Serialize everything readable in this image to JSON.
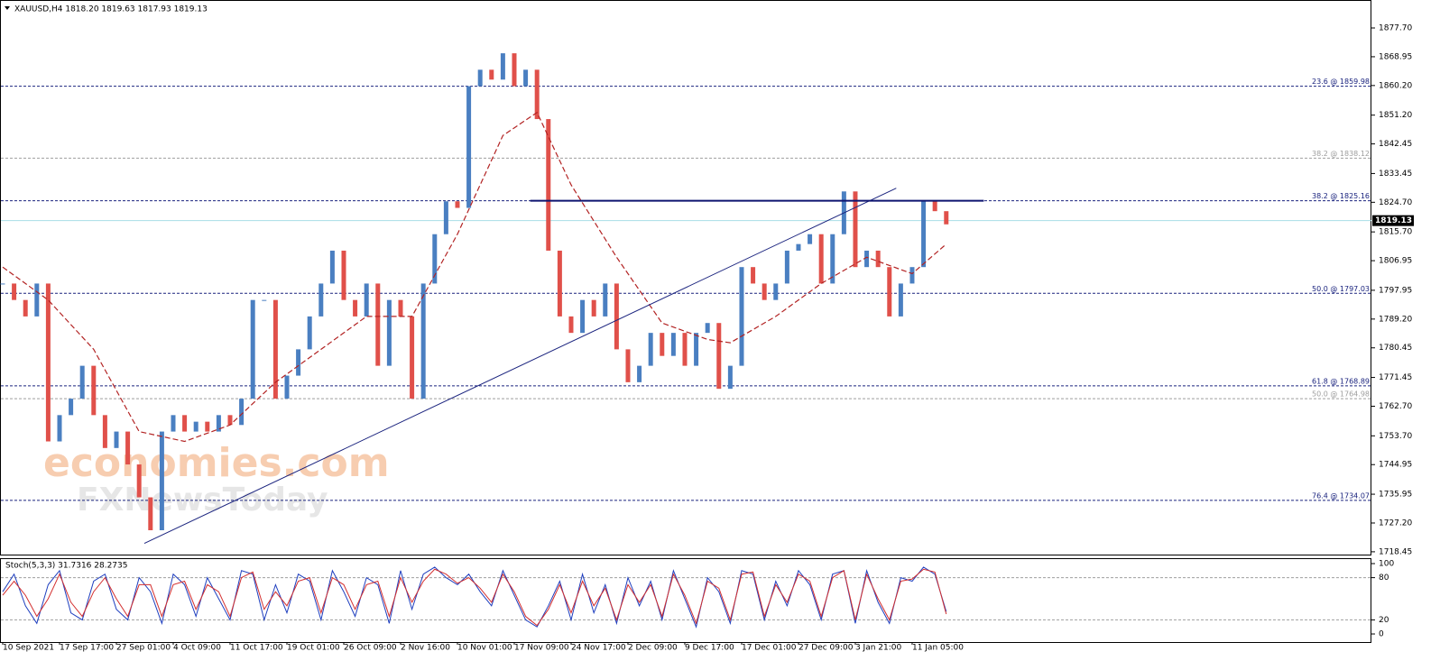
{
  "chart_data": [
    {
      "type": "candlestick",
      "title": "XAUUSD,H4  1818.20 1819.63 1817.93 1819.13",
      "watermark": [
        "economies.com",
        "FXNewsToday"
      ],
      "xlim": [
        0,
        120.4
      ],
      "ylim": [
        1717.6,
        1886.2
      ],
      "yticks": [
        {
          "value": 1877.7,
          "label": "1877.70"
        },
        1868.95,
        {
          "value": 1860.2,
          "label": "1860.20"
        },
        {
          "value": 1851.2,
          "label": "1851.20"
        },
        1842.45,
        1833.45,
        {
          "value": 1824.7,
          "label": "1824.70"
        },
        {
          "value": 1815.7,
          "label": "1815.70"
        },
        1806.95,
        1797.95,
        {
          "value": 1789.2,
          "label": "1789.20"
        },
        1780.45,
        1771.45,
        {
          "value": 1762.7,
          "label": "1762.70"
        },
        {
          "value": 1753.7,
          "label": "1753.70"
        },
        1744.95,
        1735.95,
        {
          "value": 1727.2,
          "label": "1727.20"
        },
        1718.45
      ],
      "values": [
        1800,
        1795,
        1790,
        1800,
        1752,
        1760,
        1765,
        1775,
        1760,
        1750,
        1755,
        1745,
        1735,
        1725,
        1755,
        1760,
        1755,
        1758,
        1755,
        1760,
        1757,
        1765,
        1795,
        1795,
        1765,
        1772,
        1780,
        1790,
        1800,
        1810,
        1795,
        1790,
        1800,
        1775,
        1795,
        1790,
        1765,
        1800,
        1815,
        1825,
        1823,
        1860,
        1865,
        1862,
        1870,
        1860,
        1865,
        1850,
        1810,
        1790,
        1785,
        1795,
        1790,
        1800,
        1780,
        1770,
        1775,
        1785,
        1778,
        1785,
        1775,
        1785,
        1788,
        1768,
        1775,
        1805,
        1800,
        1795,
        1800,
        1810,
        1812,
        1815,
        1800,
        1815,
        1828,
        1805,
        1810,
        1805,
        1790,
        1800,
        1805,
        1825,
        1822,
        1818
      ],
      "color_up": "#4a7fc1",
      "color_down": "#e0504a",
      "moving_average": {
        "color": "#b22222",
        "x": [
          0,
          4,
          8,
          12,
          16,
          20,
          24,
          28,
          32,
          36,
          40,
          44,
          47,
          50,
          54,
          58,
          62,
          64,
          68,
          72,
          76,
          80,
          83
        ],
        "values": [
          1805,
          1795,
          1780,
          1755,
          1752,
          1757,
          1770,
          1780,
          1790,
          1790,
          1815,
          1845,
          1852,
          1830,
          1808,
          1788,
          1783,
          1782,
          1790,
          1800,
          1808,
          1803,
          1812
        ]
      },
      "trendline": {
        "color": "#1a237e",
        "x": [
          12.46,
          78.6
        ],
        "values": [
          1721,
          1829
        ]
      },
      "level_line": {
        "color": "#0d1470",
        "x": [
          46.4,
          86.3
        ],
        "values": [
          1825.16,
          1825.16
        ]
      },
      "levels": [
        {
          "label": "23.6 @ 1859.98",
          "value": 1859.98,
          "color": "#1a237e"
        },
        {
          "label": "38.2 @ 1838.12",
          "value": 1838.12,
          "color": "#9e9e9e"
        },
        {
          "label": "38.2 @ 1825.16",
          "value": 1825.16,
          "color": "#1a237e"
        },
        {
          "label": "50.0 @ 1797.03",
          "value": 1797.03,
          "color": "#1a237e"
        },
        {
          "label": "61.8 @ 1768.89",
          "value": 1768.89,
          "color": "#1a237e"
        },
        {
          "label": "50.0 @ 1764.98",
          "value": 1764.98,
          "color": "#9e9e9e"
        },
        {
          "label": "76.4 @ 1734.07",
          "value": 1734.07,
          "color": "#1a237e"
        }
      ],
      "current_price": 1819.13,
      "current_price_color": "#a8dde6"
    },
    {
      "type": "line",
      "title": "Stoch(5,3,3) 31.7316 28.2735",
      "xlim": [
        0,
        120.4
      ],
      "ylim": [
        -11.5,
        106.4
      ],
      "yticks": [
        100,
        80,
        20,
        0
      ],
      "level_lines": [
        80,
        20
      ],
      "xticks": [
        {
          "value": 0,
          "label": "10 Sep 2021"
        },
        {
          "value": 5,
          "label": "17 Sep 17:00"
        },
        {
          "value": 10,
          "label": "27 Sep 01:00"
        },
        {
          "value": 15,
          "label": "4 Oct 09:00"
        },
        {
          "value": 20,
          "label": "11 Oct 17:00"
        },
        {
          "value": 25,
          "label": "19 Oct 01:00"
        },
        {
          "value": 30,
          "label": "26 Oct 09:00"
        },
        {
          "value": 35,
          "label": "2 Nov 16:00"
        },
        {
          "value": 40,
          "label": "10 Nov 01:00"
        },
        {
          "value": 45,
          "label": "17 Nov 09:00"
        },
        {
          "value": 50,
          "label": "24 Nov 17:00"
        },
        {
          "value": 55,
          "label": "2 Dec 09:00"
        },
        {
          "value": 60,
          "label": "9 Dec 17:00"
        },
        {
          "value": 65,
          "label": "17 Dec 01:00"
        },
        {
          "value": 70,
          "label": "27 Dec 09:00"
        },
        {
          "value": 75,
          "label": "3 Jan 21:00"
        },
        {
          "value": 80,
          "label": "11 Jan 05:00"
        }
      ],
      "series": [
        {
          "color": "#1f3fbf",
          "values": [
            60,
            85,
            40,
            15,
            70,
            90,
            30,
            20,
            75,
            85,
            35,
            20,
            80,
            60,
            15,
            85,
            70,
            25,
            80,
            50,
            20,
            90,
            85,
            20,
            70,
            30,
            85,
            75,
            20,
            90,
            60,
            25,
            80,
            70,
            15,
            90,
            35,
            85,
            95,
            80,
            70,
            85,
            60,
            40,
            90,
            55,
            20,
            10,
            40,
            75,
            20,
            85,
            30,
            70,
            15,
            80,
            40,
            75,
            20,
            90,
            50,
            10,
            80,
            60,
            15,
            90,
            85,
            20,
            75,
            40,
            90,
            70,
            20,
            85,
            90,
            15,
            90,
            45,
            15,
            80,
            75,
            95,
            85,
            31.7316
          ]
        },
        {
          "color": "#d32f2f",
          "values": [
            55,
            75,
            55,
            25,
            50,
            85,
            45,
            25,
            60,
            80,
            50,
            25,
            70,
            70,
            25,
            70,
            75,
            35,
            70,
            60,
            25,
            80,
            88,
            35,
            60,
            40,
            75,
            80,
            30,
            80,
            70,
            35,
            70,
            75,
            25,
            80,
            45,
            75,
            92,
            85,
            72,
            80,
            65,
            45,
            85,
            60,
            25,
            12,
            35,
            70,
            30,
            75,
            40,
            65,
            20,
            70,
            45,
            70,
            25,
            85,
            55,
            15,
            75,
            65,
            20,
            85,
            88,
            25,
            70,
            45,
            85,
            75,
            25,
            80,
            90,
            20,
            85,
            50,
            20,
            75,
            78,
            92,
            88,
            28.2735
          ]
        }
      ]
    }
  ]
}
